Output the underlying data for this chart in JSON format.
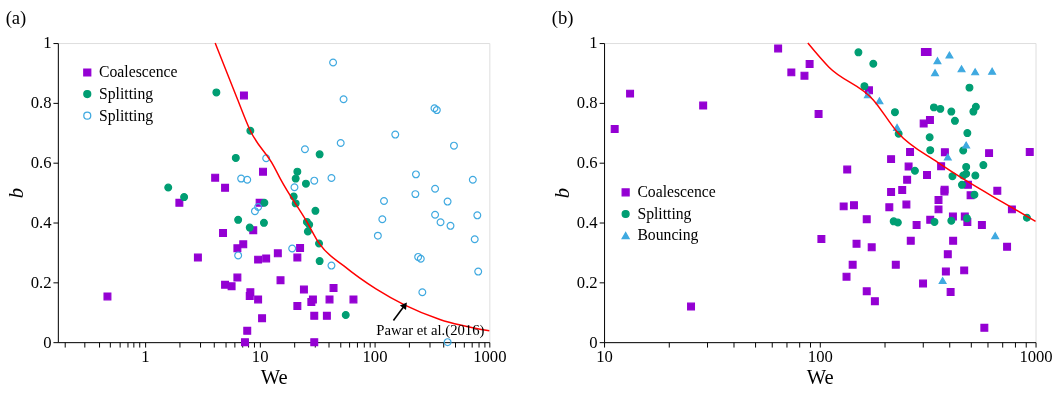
{
  "chart_data": [
    {
      "type": "scatter",
      "title": "(a)",
      "xlabel": "We",
      "ylabel": "b",
      "log": "x",
      "grid": false,
      "legend": "top left",
      "xlim": [
        0.175,
        1000
      ],
      "ylim": [
        0,
        1
      ],
      "yticks": [
        0,
        0.2,
        0.4,
        0.6,
        0.8,
        1
      ],
      "xticks": [
        {
          "value": 0.2,
          "label": null
        },
        {
          "value": 0.3,
          "label": null
        },
        {
          "value": 0.4,
          "label": null
        },
        {
          "value": 0.5,
          "label": null
        },
        {
          "value": 0.6,
          "label": null
        },
        {
          "value": 0.7,
          "label": null
        },
        {
          "value": 0.8,
          "label": null
        },
        {
          "value": 0.9,
          "label": null
        },
        1,
        {
          "value": 2,
          "label": null
        },
        {
          "value": 3,
          "label": null
        },
        {
          "value": 4,
          "label": null
        },
        {
          "value": 5,
          "label": null
        },
        {
          "value": 6,
          "label": null
        },
        {
          "value": 7,
          "label": null
        },
        {
          "value": 8,
          "label": null
        },
        {
          "value": 9,
          "label": null
        },
        10,
        {
          "value": 20,
          "label": null
        },
        {
          "value": 30,
          "label": null
        },
        {
          "value": 40,
          "label": null
        },
        {
          "value": 50,
          "label": null
        },
        {
          "value": 60,
          "label": null
        },
        {
          "value": 70,
          "label": null
        },
        {
          "value": 80,
          "label": null
        },
        {
          "value": 90,
          "label": null
        },
        100,
        {
          "value": 200,
          "label": null
        },
        {
          "value": 300,
          "label": null
        },
        {
          "value": 400,
          "label": null
        },
        {
          "value": 500,
          "label": null
        },
        {
          "value": 600,
          "label": null
        },
        {
          "value": 700,
          "label": null
        },
        {
          "value": 800,
          "label": null
        },
        {
          "value": 900,
          "label": null
        },
        1000
      ],
      "annotations": [
        {
          "text": "Pawar et al.(2016)",
          "x": 184,
          "y": 0.124
        }
      ],
      "series": [
        {
          "name": "Coalescence",
          "color": "#9400d3",
          "marker": "square",
          "x": [
            7.3,
            4.1,
            5.0,
            10.7,
            2.0,
            4.8,
            6.4,
            7.2,
            8.8,
            10.0,
            2.9,
            9.7,
            11.4,
            14.4,
            22.5,
            21.3,
            6.4,
            5.0,
            5.7,
            15.2,
            8.3,
            8.2,
            9.7,
            24.3,
            21.3,
            29.1,
            28.2,
            29.9,
            10.5,
            7.8,
            7.45,
            29.9,
            0.473,
            44,
            40.6,
            65.6,
            38.5
          ],
          "values": [
            0.825,
            0.55,
            0.516,
            0.57,
            0.466,
            0.365,
            0.314,
            0.327,
            0.374,
            0.466,
            0.283,
            0.276,
            0.28,
            0.297,
            0.315,
            0.283,
            0.216,
            0.192,
            0.187,
            0.207,
            0.167,
            0.154,
            0.143,
            0.176,
            0.121,
            0.143,
            0.134,
            0.088,
            0.08,
            0.038,
            0,
            0,
            0.153,
            0.181,
            0.143,
            0.143,
            0.088
          ]
        },
        {
          "name": "Splitting",
          "color": "#009e73",
          "marker": "circle",
          "x": [
            4.2,
            8.3,
            6.2,
            1.6,
            2.2,
            21.3,
            20.6,
            25.3,
            19.8,
            20.6,
            11.0,
            6.5,
            10.9,
            8.2,
            30.6,
            25.8,
            27.0,
            26.3,
            33.3,
            32.9,
            33.3,
            56.2
          ],
          "values": [
            0.835,
            0.707,
            0.616,
            0.517,
            0.485,
            0.57,
            0.547,
            0.53,
            0.487,
            0.464,
            0.466,
            0.409,
            0.399,
            0.383,
            0.439,
            0.402,
            0.393,
            0.37,
            0.628,
            0.33,
            0.271,
            0.091
          ]
        },
        {
          "name": "Splitting",
          "color": "#3fa9e0",
          "marker": "circle",
          "x": [
            11.4,
            6.9,
            7.8,
            9.7,
            9.1,
            6.5,
            19.2,
            24.8,
            43.6,
            53.8,
            50.8,
            151.7,
            333,
            349,
            492,
            29.9,
            42.2,
            20.1,
            229.6,
            718,
            337,
            121,
            227,
            433,
            117,
            337,
            376,
            459,
            786,
            107,
            746,
            42.2,
            240,
            253,
            800,
            261,
            433
          ],
          "values": [
            0.615,
            0.547,
            0.543,
            0.452,
            0.438,
            0.29,
            0.313,
            0.645,
            0.935,
            0.812,
            0.666,
            0.694,
            0.782,
            0.776,
            0.657,
            0.54,
            0.549,
            0.518,
            0.561,
            0.543,
            0.513,
            0.472,
            0.495,
            0.47,
            0.411,
            0.426,
            0.401,
            0.389,
            0.424,
            0.356,
            0.344,
            0.256,
            0.285,
            0.279,
            0.236,
            0.167,
            0
          ]
        },
        {
          "type": "line",
          "color": "#ff0000",
          "marker": "none",
          "line_style": "solid",
          "x": [
            4.1,
            6.4,
            8.3,
            13.3,
            15.2,
            25.8,
            33,
            54.5,
            103,
            184,
            371,
            1000
          ],
          "values": [
            1.0,
            0.813,
            0.707,
            0.588,
            0.545,
            0.402,
            0.33,
            0.254,
            0.178,
            0.124,
            0.076,
            0.038
          ]
        }
      ]
    },
    {
      "type": "scatter",
      "title": "(b)",
      "xlabel": "We",
      "ylabel": "b",
      "log": "x",
      "grid": false,
      "legend": "left",
      "xlim": [
        10,
        1000
      ],
      "ylim": [
        0,
        1
      ],
      "yticks": [
        0,
        0.2,
        0.4,
        0.6,
        0.8,
        1
      ],
      "xticks": [
        10,
        {
          "value": 20,
          "label": null
        },
        {
          "value": 30,
          "label": null
        },
        {
          "value": 40,
          "label": null
        },
        {
          "value": 50,
          "label": null
        },
        {
          "value": 60,
          "label": null
        },
        {
          "value": 70,
          "label": null
        },
        {
          "value": 80,
          "label": null
        },
        {
          "value": 90,
          "label": null
        },
        100,
        {
          "value": 200,
          "label": null
        },
        {
          "value": 300,
          "label": null
        },
        {
          "value": 400,
          "label": null
        },
        {
          "value": 500,
          "label": null
        },
        {
          "value": 600,
          "label": null
        },
        {
          "value": 700,
          "label": null
        },
        {
          "value": 800,
          "label": null
        },
        {
          "value": 900,
          "label": null
        },
        1000
      ],
      "series": [
        {
          "name": "Coalescence",
          "color": "#9400d3",
          "marker": "square",
          "x": [
            11.2,
            13.2,
            28.8,
            25.3,
            64.1,
            73.8,
            84.9,
            89.7,
            98.7,
            101.7,
            307,
            316,
            169,
            303,
            324,
            262,
            214,
            380,
            609,
            940,
            134,
            258,
            365,
            314,
            254,
            486,
            241,
            214,
            379,
            378,
            665,
            500,
            355,
            144,
            129,
            210,
            252,
            355,
            777,
            165,
            325,
            414,
            470,
            483,
            281,
            564,
            415,
            264,
            148,
            174,
            738,
            392,
            142,
            225,
            384,
            467,
            133,
            301,
            404,
            165,
            180,
            579
          ],
          "values": [
            0.713,
            0.831,
            0.791,
            0.119,
            0.982,
            0.902,
            0.891,
            0.93,
            0.763,
            0.345,
            0.97,
            0.97,
            0.842,
            0.731,
            0.743,
            0.636,
            0.612,
            0.635,
            0.632,
            0.636,
            0.577,
            0.587,
            0.588,
            0.559,
            0.543,
            0.526,
            0.509,
            0.502,
            0.51,
            0.504,
            0.506,
            0.491,
            0.475,
            0.458,
            0.454,
            0.451,
            0.46,
            0.444,
            0.444,
            0.411,
            0.409,
            0.42,
            0.42,
            0.402,
            0.392,
            0.392,
            0.339,
            0.339,
            0.329,
            0.317,
            0.319,
            0.294,
            0.259,
            0.259,
            0.236,
            0.24,
            0.219,
            0.196,
            0.168,
            0.17,
            0.137,
            0.048
          ]
        },
        {
          "name": "Splitting",
          "color": "#009e73",
          "marker": "circle",
          "x": [
            151,
            177,
            161,
            494,
            223,
            338,
            362,
            407,
            423,
            515,
            529,
            232,
            323,
            483,
            325,
            462,
            477,
            477,
            462,
            573,
            526,
            276,
            412,
            456,
            521,
            220,
            230,
            340,
            407,
            481,
            912
          ],
          "values": [
            0.969,
            0.931,
            0.856,
            0.851,
            0.769,
            0.785,
            0.78,
            0.771,
            0.74,
            0.771,
            0.787,
            0.697,
            0.685,
            0.699,
            0.642,
            0.641,
            0.586,
            0.563,
            0.557,
            0.592,
            0.557,
            0.573,
            0.555,
            0.526,
            0.493,
            0.404,
            0.4,
            0.402,
            0.406,
            0.414,
            0.416
          ]
        },
        {
          "name": "Bouncing",
          "color": "#3fa9e0",
          "marker": "triangle",
          "x": [
            399,
            351,
            342,
            454,
            525,
            629,
            167,
            189,
            228,
            477,
            392,
            650,
            371
          ],
          "values": [
            0.96,
            0.941,
            0.901,
            0.914,
            0.904,
            0.906,
            0.827,
            0.807,
            0.718,
            0.659,
            0.619,
            0.356,
            0.206
          ]
        },
        {
          "type": "line",
          "color": "#ff0000",
          "marker": "none",
          "line_style": "solid",
          "x": [
            88,
            110,
            177,
            230,
            352,
            494,
            696,
            1000
          ],
          "values": [
            1.0,
            0.92,
            0.81,
            0.7,
            0.601,
            0.533,
            0.47,
            0.404
          ]
        }
      ]
    }
  ]
}
